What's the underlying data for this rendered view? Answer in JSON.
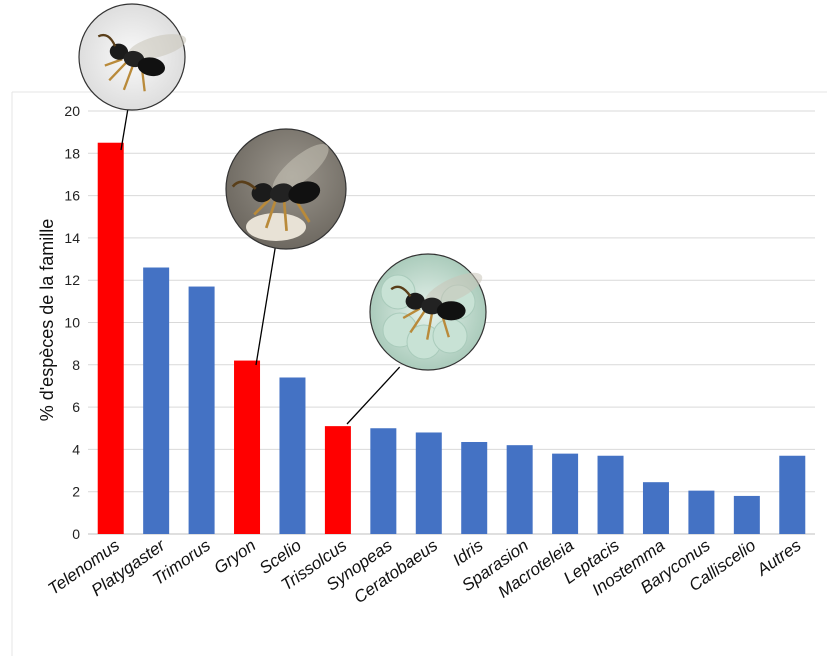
{
  "chart_data": {
    "type": "bar",
    "title": "",
    "xlabel": "",
    "ylabel": "% d'espèces de la famille",
    "ylim": [
      0,
      20
    ],
    "yticks": [
      0,
      2,
      4,
      6,
      8,
      10,
      12,
      14,
      16,
      18,
      20
    ],
    "grid": true,
    "categories": [
      "Telenomus",
      "Platygaster",
      "Trimorus",
      "Gryon",
      "Scelio",
      "Trissolcus",
      "Synopeas",
      "Ceratobaeus",
      "Idris",
      "Sparasion",
      "Macroteleia",
      "Leptacis",
      "Inostemma",
      "Baryconus",
      "Calliscelio",
      "Autres"
    ],
    "values": [
      18.5,
      12.6,
      11.7,
      8.2,
      7.4,
      5.1,
      5.0,
      4.8,
      4.35,
      4.2,
      3.8,
      3.7,
      2.45,
      2.05,
      1.8,
      3.7
    ],
    "highlighted": [
      "Telenomus",
      "Gryon",
      "Trissolcus"
    ],
    "colors": {
      "default": "#4472c4",
      "highlight": "#ff0000",
      "grid": "#d9d9d9"
    },
    "insets": [
      {
        "target": "Telenomus",
        "icon": "wasp-photo-telenomus"
      },
      {
        "target": "Gryon",
        "icon": "wasp-photo-gryon"
      },
      {
        "target": "Trissolcus",
        "icon": "wasp-photo-trissolcus"
      }
    ]
  }
}
